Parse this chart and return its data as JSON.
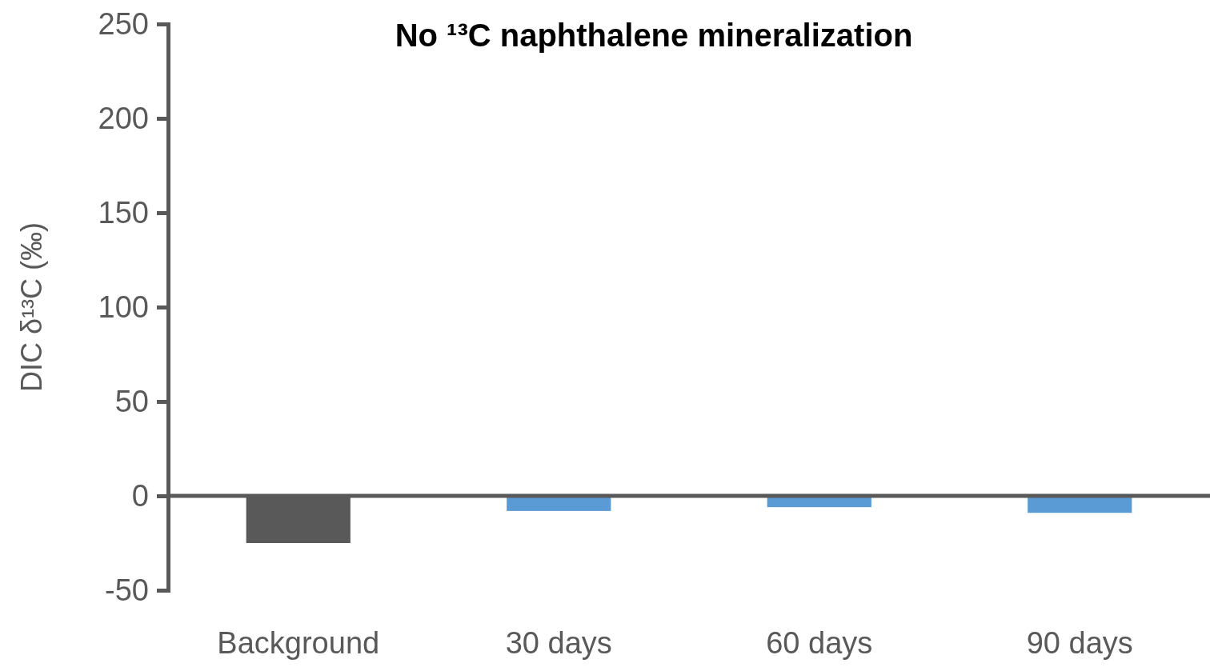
{
  "chart_data": {
    "type": "bar",
    "title": "No ¹³C naphthalene mineralization",
    "ylabel": "DIC δ¹³C (‰)",
    "categories": [
      "Background",
      "30 days",
      "60 days",
      "90 days"
    ],
    "values": [
      -25,
      -8,
      -6,
      -9
    ],
    "colors": [
      "#595959",
      "#5b9bd5",
      "#5b9bd5",
      "#5b9bd5"
    ],
    "ylim": [
      -50,
      250
    ],
    "yticks": [
      -50,
      0,
      50,
      100,
      150,
      200,
      250
    ]
  }
}
